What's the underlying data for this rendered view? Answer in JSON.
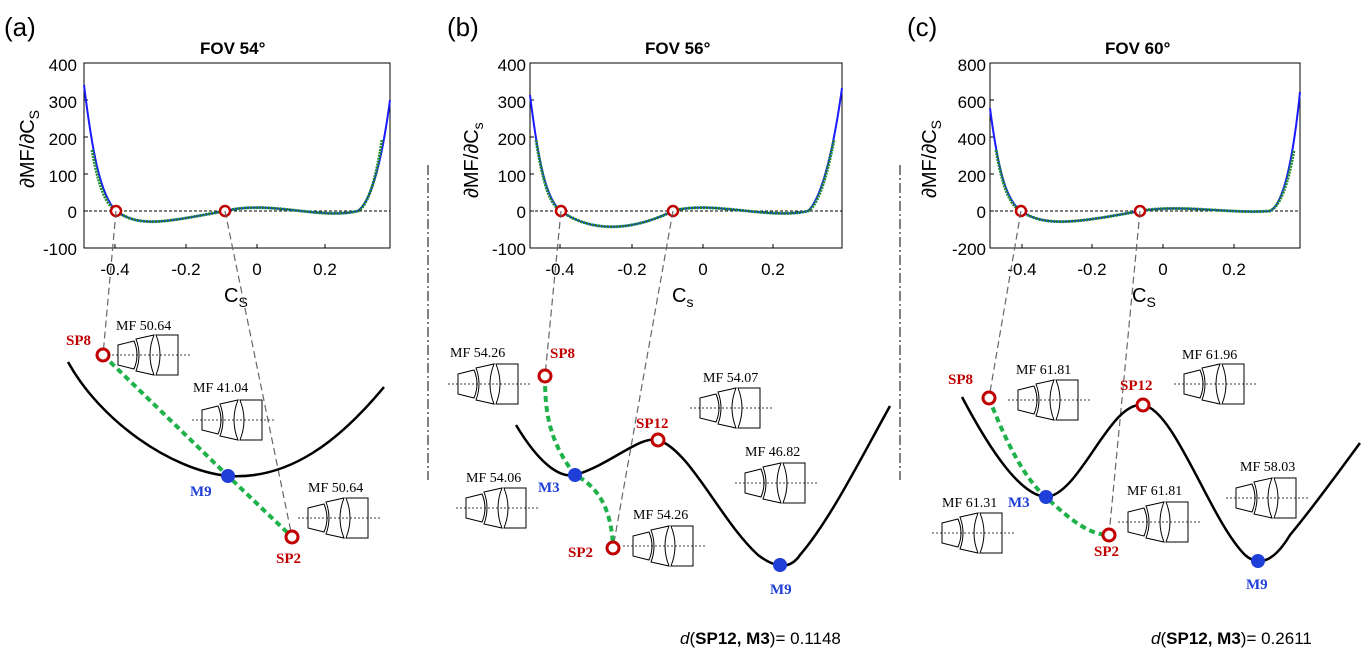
{
  "panels": [
    {
      "label": "(a)",
      "title": "FOV 54°",
      "ylabel": "∂MF/∂C",
      "ylabel_sub": "S",
      "xlabel": "C",
      "xlabel_sub": "S",
      "yticks": [
        "400",
        "300",
        "200",
        "100",
        "0",
        "-100"
      ],
      "xticks": [
        "-0.4",
        "-0.2",
        "0",
        "0.2"
      ],
      "points": [
        {
          "name": "SP8",
          "mf": "MF 50.64",
          "type": "saddle"
        },
        {
          "name": "M9",
          "mf": "MF 41.04",
          "type": "minimum"
        },
        {
          "name": "SP2",
          "mf": "MF 50.64",
          "type": "saddle"
        }
      ],
      "distance": null
    },
    {
      "label": "(b)",
      "title": "FOV 56°",
      "ylabel": "∂MF/∂C",
      "ylabel_sub": "s",
      "xlabel": "C",
      "xlabel_sub": "s",
      "yticks": [
        "400",
        "300",
        "200",
        "100",
        "0",
        "-100"
      ],
      "xticks": [
        "-0.4",
        "-0.2",
        "0",
        "0.2"
      ],
      "points": [
        {
          "name": "SP8",
          "mf": "MF 54.26",
          "type": "saddle"
        },
        {
          "name": "SP12",
          "mf": "MF 54.07",
          "type": "saddle"
        },
        {
          "name": "M3",
          "mf": "MF 54.06",
          "type": "minimum"
        },
        {
          "name": "SP2",
          "mf": "MF 54.26",
          "type": "saddle"
        },
        {
          "name": "M9",
          "mf": "MF 46.82",
          "type": "minimum"
        }
      ],
      "distance": {
        "prefix": "d",
        "args": "SP12, M3",
        "value": "= 0.1148"
      }
    },
    {
      "label": "(c)",
      "title": "FOV 60°",
      "ylabel": "∂MF/∂C",
      "ylabel_sub": "S",
      "xlabel": "C",
      "xlabel_sub": "S",
      "yticks": [
        "800",
        "600",
        "400",
        "200",
        "0",
        "-200"
      ],
      "xticks": [
        "-0.4",
        "-0.2",
        "0",
        "0.2"
      ],
      "points": [
        {
          "name": "SP8",
          "mf": "MF 61.81",
          "type": "saddle"
        },
        {
          "name": "SP12",
          "mf": "MF 61.96",
          "type": "saddle"
        },
        {
          "name": "M3",
          "mf": "MF 61.31",
          "type": "minimum"
        },
        {
          "name": "SP2",
          "mf": "MF 61.81",
          "type": "saddle"
        },
        {
          "name": "M9",
          "mf": "MF 58.03",
          "type": "minimum"
        }
      ],
      "distance": {
        "prefix": "d",
        "args": "SP12, M3",
        "value": "= 0.2611"
      }
    }
  ],
  "colors": {
    "saddle": "#c00000",
    "minimum": "#1f3fd8",
    "path": "#1fb24a",
    "curve_blue": "#1a1aff",
    "curve_green": "#1e8a2e"
  }
}
